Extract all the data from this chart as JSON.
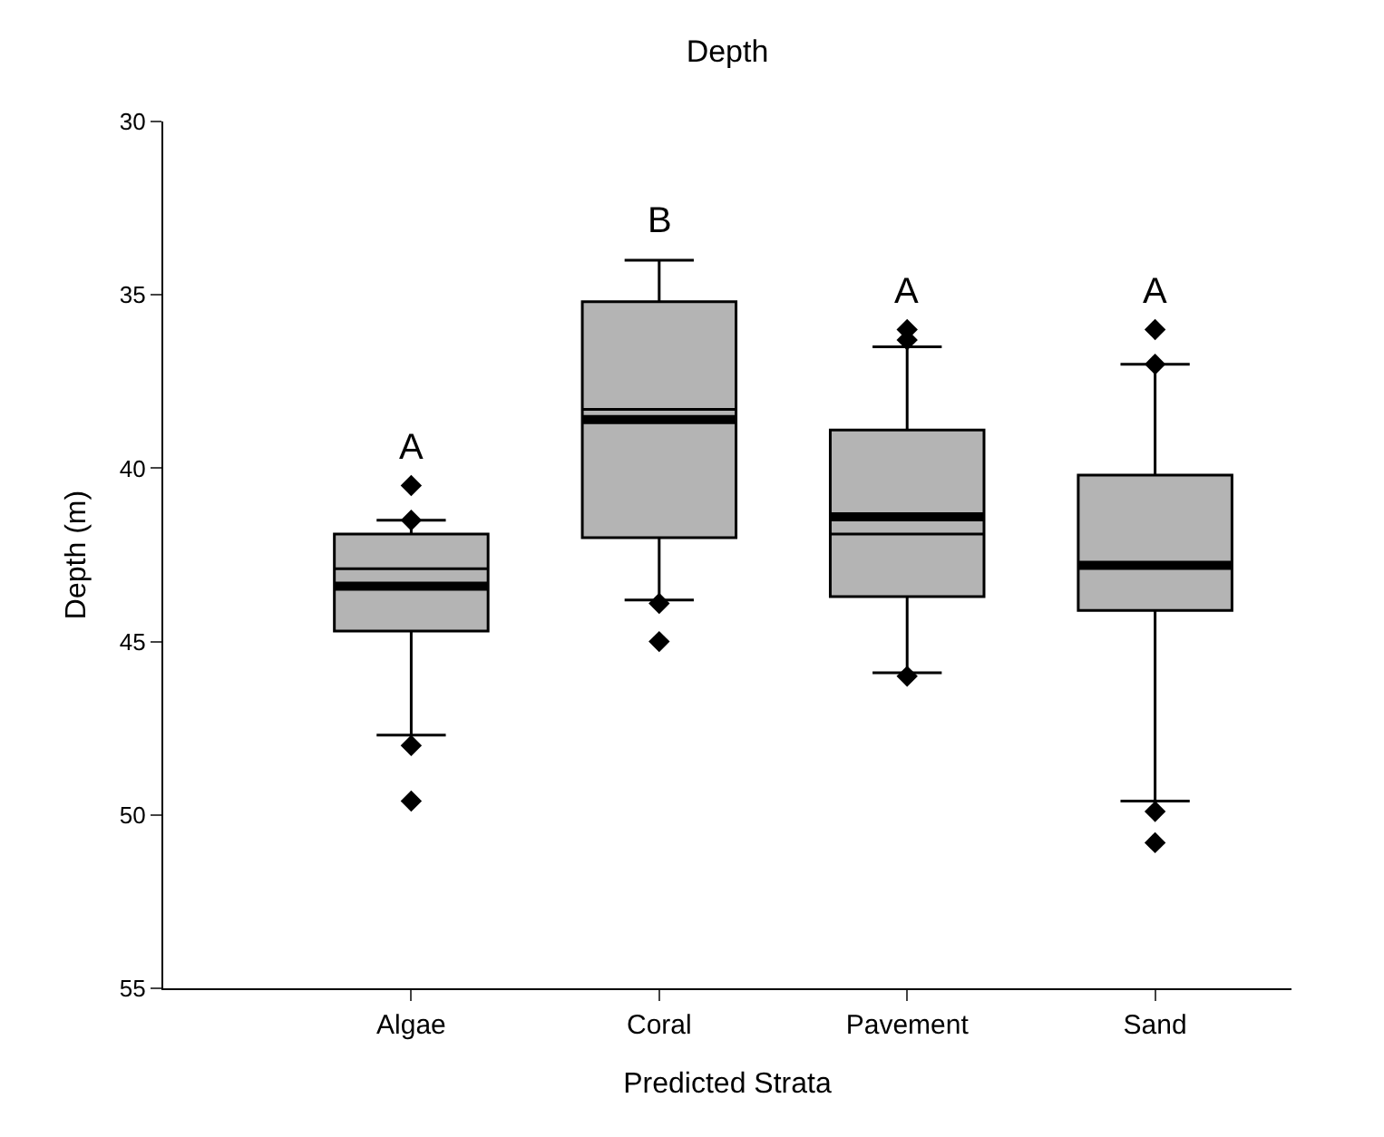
{
  "chart_data": {
    "type": "box",
    "title": "Depth",
    "xlabel": "Predicted Strata",
    "ylabel": "Depth (m)",
    "categories": [
      "Algae",
      "Coral",
      "Pavement",
      "Sand"
    ],
    "color": "#b4b4b4",
    "boxes": [
      {
        "low": 41.5,
        "q1": 41.9,
        "median": 42.9,
        "q3": 44.7,
        "high": 47.7,
        "mean": 43.4,
        "outliers": [
          40.5,
          41.5,
          48.0,
          49.6
        ]
      },
      {
        "low": 34.0,
        "q1": 35.2,
        "median": 38.3,
        "q3": 42.0,
        "high": 43.8,
        "mean": 38.6,
        "outliers": [
          43.9,
          45.0
        ]
      },
      {
        "low": 36.5,
        "q1": 38.9,
        "median": 41.9,
        "q3": 43.7,
        "high": 45.9,
        "mean": 41.4,
        "outliers": [
          36.0,
          36.3,
          46.0
        ]
      },
      {
        "low": 37.0,
        "q1": 40.2,
        "median": 42.8,
        "q3": 44.1,
        "high": 49.6,
        "mean": 42.8,
        "outliers": [
          36.0,
          37.0,
          49.9,
          50.8
        ]
      }
    ],
    "annotations": [
      "A",
      "B",
      "A",
      "A"
    ],
    "ylim": [
      55,
      30
    ],
    "yticks": [
      30,
      35,
      40,
      45,
      50,
      55
    ],
    "grid": false
  }
}
